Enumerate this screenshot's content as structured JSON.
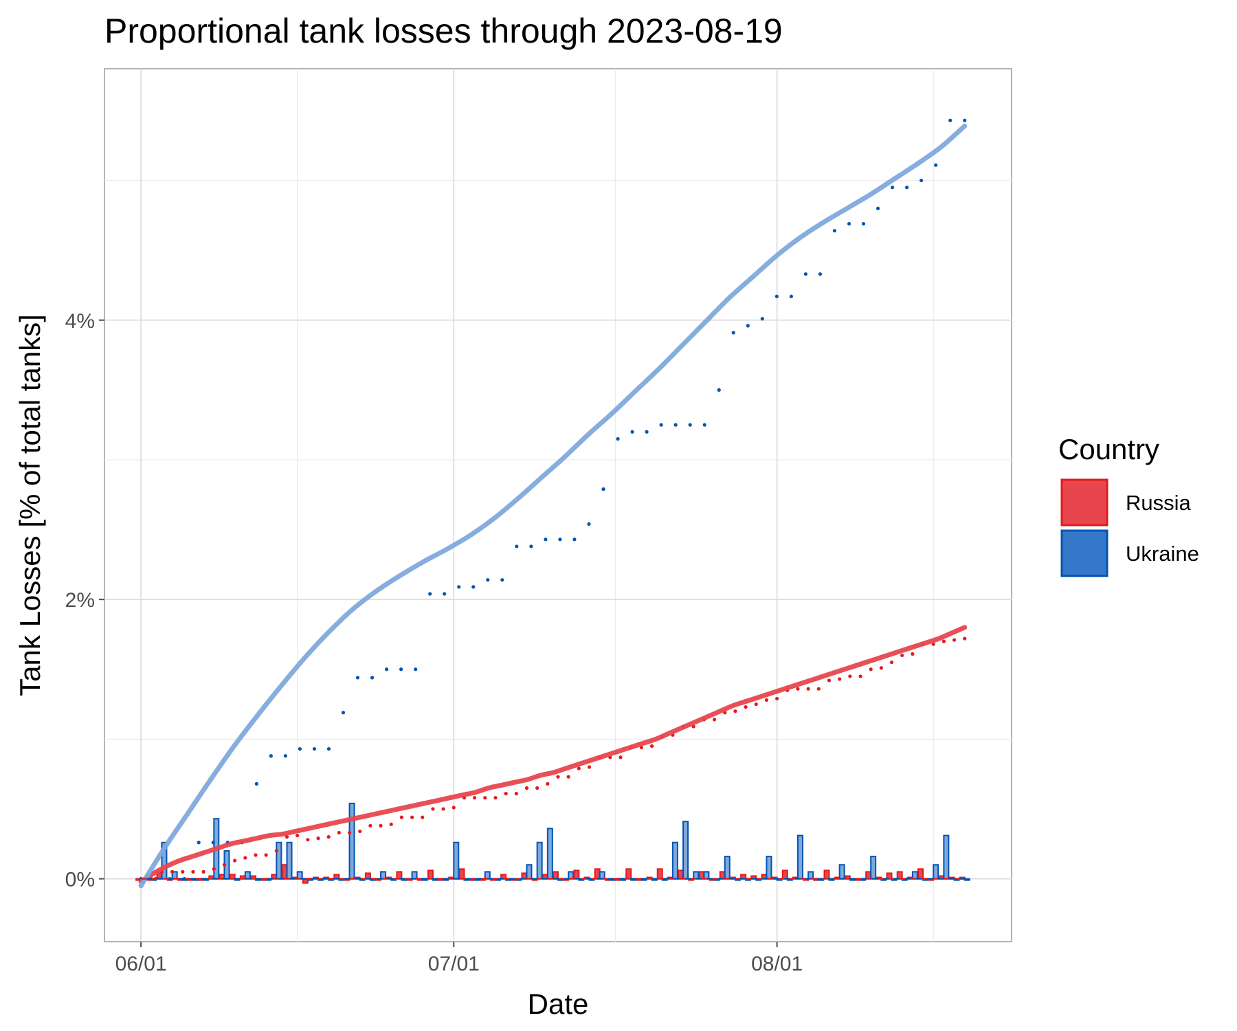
{
  "chart_data": {
    "type": "line",
    "title": "Proportional tank losses through 2023-08-19",
    "xlabel": "Date",
    "ylabel": "Tank Losses [% of total tanks]",
    "x_start": "06/01",
    "x_end": "08/19",
    "x_ticks": [
      {
        "day": 0,
        "label": "06/01"
      },
      {
        "day": 30,
        "label": "07/01"
      },
      {
        "day": 61,
        "label": "08/01"
      }
    ],
    "y_ticks": [
      {
        "value": 0,
        "label": "0%"
      },
      {
        "value": 2,
        "label": "2%"
      },
      {
        "value": 4,
        "label": "4%"
      }
    ],
    "ylim": [
      -0.45,
      5.8
    ],
    "grid": true,
    "legend": {
      "title": "Country",
      "position": "right"
    },
    "series": [
      {
        "name": "Russia",
        "color": "#e8464e",
        "dark_color": "#e31a1c",
        "cumulative_percent": [
          0.0,
          0.0,
          0.05,
          0.05,
          0.05,
          0.05,
          0.05,
          0.07,
          0.1,
          0.13,
          0.15,
          0.17,
          0.17,
          0.2,
          0.3,
          0.31,
          0.28,
          0.29,
          0.3,
          0.33,
          0.33,
          0.34,
          0.38,
          0.38,
          0.39,
          0.44,
          0.44,
          0.44,
          0.5,
          0.5,
          0.51,
          0.58,
          0.58,
          0.58,
          0.58,
          0.61,
          0.61,
          0.65,
          0.65,
          0.68,
          0.73,
          0.73,
          0.79,
          0.8,
          0.87,
          0.87,
          0.87,
          0.94,
          0.94,
          0.95,
          1.02,
          1.03,
          1.09,
          1.09,
          1.14,
          1.14,
          1.19,
          1.2,
          1.23,
          1.25,
          1.28,
          1.29,
          1.35,
          1.36,
          1.36,
          1.36,
          1.42,
          1.43,
          1.45,
          1.45,
          1.5,
          1.51,
          1.55,
          1.6,
          1.61,
          1.68,
          1.68,
          1.7,
          1.71,
          1.72
        ],
        "smooth_percent": [
          -0.02,
          0.04,
          0.09,
          0.13,
          0.16,
          0.19,
          0.22,
          0.25,
          0.27,
          0.29,
          0.31,
          0.32,
          0.34,
          0.36,
          0.38,
          0.4,
          0.42,
          0.44,
          0.46,
          0.48,
          0.5,
          0.52,
          0.54,
          0.56,
          0.58,
          0.6,
          0.62,
          0.65,
          0.67,
          0.69,
          0.71,
          0.74,
          0.76,
          0.79,
          0.82,
          0.85,
          0.88,
          0.91,
          0.94,
          0.97,
          1.0,
          1.04,
          1.08,
          1.12,
          1.16,
          1.2,
          1.24,
          1.27,
          1.3,
          1.33,
          1.36,
          1.39,
          1.42,
          1.45,
          1.48,
          1.51,
          1.54,
          1.57,
          1.6,
          1.63,
          1.66,
          1.69,
          1.72,
          1.76,
          1.8
        ],
        "daily_percent": [
          0.0,
          0.0,
          0.05,
          0.0,
          0.0,
          0.0,
          0.0,
          0.02,
          0.03,
          0.03,
          0.02,
          0.02,
          0.0,
          0.03,
          0.1,
          0.01,
          -0.03,
          0.01,
          0.01,
          0.03,
          0.0,
          0.01,
          0.04,
          0.0,
          0.01,
          0.05,
          0.0,
          0.0,
          0.06,
          0.0,
          0.01,
          0.07,
          0.0,
          0.0,
          0.0,
          0.03,
          0.0,
          0.04,
          0.0,
          0.03,
          0.05,
          0.0,
          0.06,
          0.01,
          0.07,
          0.0,
          0.0,
          0.07,
          0.0,
          0.01,
          0.07,
          0.01,
          0.06,
          0.0,
          0.05,
          0.0,
          0.05,
          0.01,
          0.03,
          0.02,
          0.03,
          0.01,
          0.06,
          0.01,
          0.0,
          0.0,
          0.06,
          0.01,
          0.02,
          0.0,
          0.05,
          0.01,
          0.04,
          0.05,
          0.01,
          0.07,
          0.0,
          0.02,
          0.01,
          0.01
        ]
      },
      {
        "name": "Ukraine",
        "color": "#7fa9dc",
        "dark_color": "#0054b3",
        "cumulative_percent": [
          0.0,
          0.0,
          0.0,
          0.0,
          0.26,
          0.26,
          0.26,
          0.26,
          0.68,
          0.88,
          0.88,
          0.93,
          0.93,
          0.93,
          1.19,
          1.44,
          1.44,
          1.5,
          1.5,
          1.5,
          2.04,
          2.04,
          2.09,
          2.09,
          2.14,
          2.14,
          2.38,
          2.38,
          2.43,
          2.43,
          2.43,
          2.54,
          2.79,
          3.15,
          3.2,
          3.2,
          3.25,
          3.25,
          3.25,
          3.25,
          3.5,
          3.91,
          3.96,
          4.01,
          4.17,
          4.17,
          4.33,
          4.33,
          4.64,
          4.69,
          4.69,
          4.8,
          4.95,
          4.95,
          5.0,
          5.11,
          5.43,
          5.43
        ],
        "smooth_percent": [
          -0.05,
          0.22,
          0.47,
          0.72,
          0.96,
          1.18,
          1.39,
          1.59,
          1.77,
          1.93,
          2.06,
          2.17,
          2.27,
          2.36,
          2.46,
          2.58,
          2.72,
          2.87,
          3.02,
          3.18,
          3.33,
          3.49,
          3.65,
          3.82,
          3.99,
          4.16,
          4.31,
          4.46,
          4.59,
          4.7,
          4.8,
          4.9,
          5.01,
          5.12,
          5.24,
          5.39
        ],
        "daily_percent": [
          0.0,
          0.0,
          0.26,
          0.05,
          0.0,
          0.0,
          0.0,
          0.43,
          0.2,
          0.0,
          0.05,
          0.0,
          0.0,
          0.26,
          0.26,
          0.05,
          0.0,
          0.0,
          0.0,
          0.0,
          0.54,
          0.0,
          0.0,
          0.05,
          0.0,
          0.0,
          0.05,
          0.0,
          0.0,
          0.0,
          0.26,
          0.0,
          0.0,
          0.05,
          0.0,
          0.0,
          0.0,
          0.1,
          0.26,
          0.36,
          0.0,
          0.05,
          0.0,
          0.0,
          0.05,
          0.0,
          0.0,
          0.0,
          0.0,
          0.0,
          0.0,
          0.26,
          0.41,
          0.05,
          0.05,
          0.0,
          0.16,
          0.0,
          0.0,
          0.0,
          0.16,
          0.0,
          0.0,
          0.31,
          0.05,
          0.0,
          0.0,
          0.1,
          0.0,
          0.0,
          0.16,
          0.0,
          0.0,
          0.0,
          0.05,
          0.0,
          0.1,
          0.31,
          0.0,
          0.0
        ]
      }
    ]
  }
}
